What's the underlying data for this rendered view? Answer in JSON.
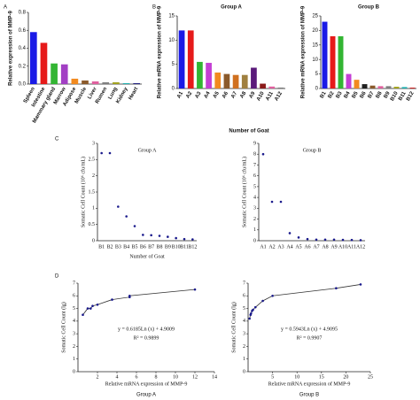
{
  "chart_data": [
    {
      "type": "bar",
      "panel": "A",
      "ylabel": "Relative expression of MMP-9",
      "categories": [
        "Spleen",
        "Intestine",
        "Mammary gland",
        "Marrow",
        "Adipose",
        "Muscle",
        "Liver",
        "Rumen",
        "Lung",
        "Kidney",
        "Heart"
      ],
      "values": [
        0.58,
        0.46,
        0.23,
        0.22,
        0.06,
        0.04,
        0.03,
        0.02,
        0.02,
        0.01,
        0.01
      ],
      "colors": [
        "#1a1ae6",
        "#e61a1a",
        "#33b533",
        "#a23fc4",
        "#f28a1f",
        "#8b5a2b",
        "#e0609e",
        "#7f7f7f",
        "#a3a320",
        "#1fb0b0",
        "#202080"
      ],
      "ylim": [
        0,
        0.8
      ],
      "yticks": [
        {
          "value": 0,
          "label": "0.0"
        },
        0.2,
        0.4,
        0.6,
        0.8
      ]
    },
    {
      "type": "bar",
      "panel": "B",
      "title": "Group A",
      "ylabel": "Relative mRNA expression of MMP-9",
      "xlabel": "Number of Goat",
      "categories": [
        "A1",
        "A2",
        "A3",
        "A4",
        "A5",
        "A6",
        "A7",
        "A8",
        "A9",
        "A10",
        "A11",
        "A12"
      ],
      "values": [
        12,
        12,
        5.5,
        5.3,
        3.3,
        3.0,
        2.8,
        2.8,
        4.3,
        1.0,
        0.4,
        0.2
      ],
      "colors": [
        "#1a1ae6",
        "#e61a1a",
        "#33b533",
        "#c43fd4",
        "#f28a1f",
        "#8b5a2b",
        "#d07020",
        "#a08040",
        "#5a1a7a",
        "#8b1a1a",
        "#e0609e",
        "#7f7f7f"
      ],
      "ylim": [
        0,
        15
      ],
      "yticks": [
        0,
        5,
        10,
        15
      ]
    },
    {
      "type": "bar",
      "title": "Group B",
      "ylabel": "Relative mRNA expression of MMP-9",
      "categories": [
        "B1",
        "B2",
        "B3",
        "B4",
        "B5",
        "B6",
        "B7",
        "B8",
        "B9",
        "B10",
        "B11",
        "B12"
      ],
      "values": [
        23,
        18,
        18,
        5,
        3,
        1.5,
        1.0,
        0.8,
        0.8,
        0.6,
        0.5,
        0.3
      ],
      "colors": [
        "#1a1ae6",
        "#e61a1a",
        "#33b533",
        "#c43fd4",
        "#f28a1f",
        "#202020",
        "#8b5a2b",
        "#e0609e",
        "#7f7f7f",
        "#a3a320",
        "#1fb0b0",
        "#d02020"
      ],
      "ylim": [
        0,
        25
      ],
      "yticks": [
        0,
        5,
        10,
        15,
        20,
        25
      ]
    },
    {
      "type": "scatter",
      "panel": "C",
      "title": "Group A",
      "ylabel": "Somatic Cell Count (10⁶ cfu/mL)",
      "xlabel": "Number of Goat",
      "color": "#1a1a8c",
      "categories": [
        "B1",
        "B2",
        "B3",
        "B4",
        "B5",
        "B6",
        "B7",
        "B8",
        "B9",
        "B10",
        "B11",
        "B12"
      ],
      "values": [
        2.7,
        2.7,
        1.05,
        0.75,
        0.45,
        0.18,
        0.17,
        0.15,
        0.12,
        0.08,
        0.05,
        0.04
      ],
      "ylim": [
        0,
        3
      ],
      "yticks": [
        0,
        0.5,
        1,
        1.5,
        2,
        2.5,
        3
      ]
    },
    {
      "type": "scatter",
      "title": "Group B",
      "ylabel": "Somatic Cell Count (10⁶ cfu/mL)",
      "color": "#1a1a8c",
      "categories": [
        "A1",
        "A2",
        "A3",
        "A4",
        "A5",
        "A6",
        "A7",
        "A8",
        "A9",
        "A10",
        "A11",
        "A12"
      ],
      "values": [
        8,
        3.6,
        3.6,
        0.7,
        0.3,
        0.15,
        0.1,
        0.1,
        0.1,
        0.08,
        0.07,
        0.05
      ],
      "ylim": [
        0,
        9
      ],
      "yticks": [
        0,
        1,
        2,
        3,
        4,
        5,
        6,
        7,
        8,
        9
      ]
    },
    {
      "type": "scatter",
      "panel": "D",
      "caption": "Group A",
      "ylabel": "Somatic Cell Count (lg)",
      "xlabel": "Relative mRNA expression of MMP-9",
      "color": "#1a1a8c",
      "fit_line": true,
      "x": [
        0.5,
        1,
        1.3,
        1.5,
        2,
        3.5,
        5.3,
        5.3,
        12
      ],
      "values": [
        4.5,
        5.0,
        5.0,
        5.2,
        5.3,
        5.7,
        5.9,
        6.0,
        6.5
      ],
      "xlim": [
        0,
        14
      ],
      "xticks": [
        2,
        4,
        6,
        8,
        10,
        12,
        14
      ],
      "ylim": [
        0,
        7
      ],
      "yticks": [
        0,
        1,
        2,
        3,
        4,
        5,
        6,
        7
      ],
      "annotations": [
        "y = 0.6185Ln (x) + 4.9009",
        "R² = 0.9899"
      ]
    },
    {
      "type": "scatter",
      "caption": "Group B",
      "ylabel": "Somatic Cell Count (lg)",
      "xlabel": "Relative mRNA expression of MMP-9",
      "color": "#1a1a8c",
      "fit_line": true,
      "x": [
        0.3,
        0.5,
        0.6,
        0.8,
        1,
        1.5,
        3,
        5,
        18,
        23
      ],
      "values": [
        4.2,
        4.5,
        4.6,
        4.8,
        4.9,
        5.1,
        5.6,
        6.0,
        6.6,
        6.9
      ],
      "xlim": [
        0,
        25
      ],
      "xticks": [
        5,
        10,
        15,
        20,
        25
      ],
      "ylim": [
        0,
        7
      ],
      "yticks": [
        0,
        1,
        2,
        3,
        4,
        5,
        6,
        7
      ],
      "annotations": [
        "y = 0.5943Ln (x) + 4.9095",
        "R² = 0.9907"
      ]
    }
  ]
}
